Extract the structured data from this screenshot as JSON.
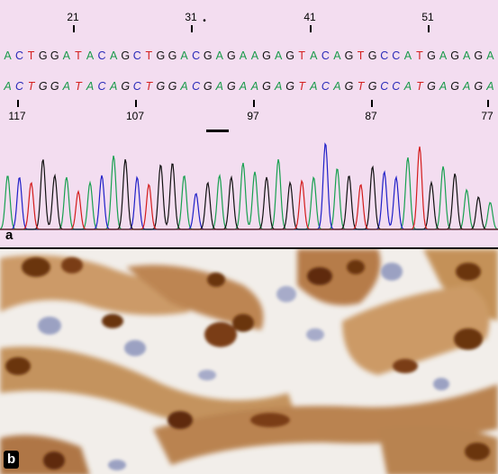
{
  "panel_a": {
    "label": "a",
    "top_ticks": [
      "21",
      "31",
      "41",
      "51"
    ],
    "marker": "•",
    "top_sequence": "ACTGGATACAGCTGGACGAGAAGAGTACAGTGCCATGAGAGA",
    "bottom_sequence": "ACTGGATACAGCTGGACGAGAAGAGTACAGTGCCATGAGAGA",
    "bottom_ticks": [
      "117",
      "107",
      "97",
      "87",
      "77"
    ],
    "base_colors": {
      "A": "#1a9a4a",
      "C": "#2a2ab8",
      "G": "#111111",
      "T": "#d42020"
    },
    "trace_colors": {
      "green": "#18a050",
      "blue": "#2020c8",
      "black": "#111111",
      "red": "#d41c1c"
    }
  },
  "panel_b": {
    "label": "b",
    "palette": {
      "background": "#f4f1ee",
      "stain_dark": "#6b3410",
      "stain_mid": "#9a5a22",
      "stain_light": "#c8925a",
      "nucleus_blue": "#8c94bc"
    }
  }
}
